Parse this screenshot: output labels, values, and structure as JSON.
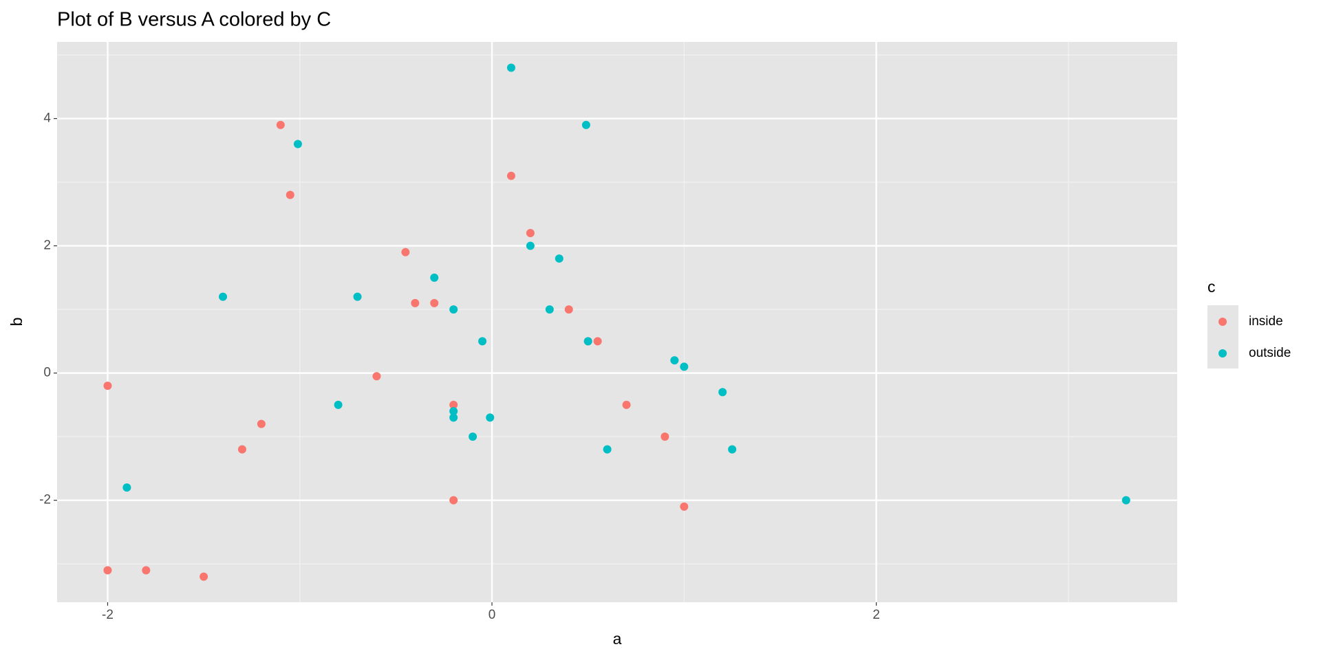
{
  "chart_data": {
    "type": "scatter",
    "title": "Plot of B versus A colored by C",
    "xlabel": "a",
    "ylabel": "b",
    "legend_title": "c",
    "legend": "right",
    "grid": true,
    "xlim": [
      -2.263,
      3.566
    ],
    "ylim": [
      -3.603,
      5.205
    ],
    "xticks": [
      -2,
      0,
      2
    ],
    "yticks": [
      -2,
      0,
      2,
      4
    ],
    "series": [
      {
        "name": "inside",
        "color": "#f8766d",
        "x": [
          -1.1,
          -1.05,
          -2.0,
          -2.0,
          -1.8,
          -1.5,
          -1.3,
          -1.2,
          -0.6,
          -0.45,
          -0.4,
          -0.3,
          -0.2,
          -0.2,
          0.1,
          0.2,
          0.4,
          0.5,
          0.55,
          0.7,
          0.9,
          1.0
        ],
        "values": [
          3.9,
          2.8,
          -0.2,
          -3.1,
          -3.1,
          -3.2,
          -1.2,
          -0.8,
          -0.05,
          1.9,
          1.1,
          1.1,
          -0.5,
          -2.0,
          3.1,
          2.2,
          1.0,
          0.5,
          0.5,
          -0.5,
          -1.0,
          -2.1
        ]
      },
      {
        "name": "outside",
        "color": "#00bfc4",
        "x": [
          0.1,
          0.49,
          -1.01,
          -1.4,
          -0.7,
          -1.9,
          -0.8,
          -0.3,
          -0.2,
          -0.05,
          -0.2,
          -0.2,
          -0.1,
          -0.01,
          0.2,
          0.35,
          0.3,
          0.5,
          0.6,
          0.95,
          1.0,
          1.2,
          1.25,
          3.3
        ],
        "values": [
          4.8,
          3.9,
          3.6,
          1.2,
          1.2,
          -1.8,
          -0.5,
          1.5,
          1.0,
          0.5,
          -0.6,
          -0.7,
          -1.0,
          -0.7,
          2.0,
          1.8,
          1.0,
          0.5,
          -1.2,
          0.2,
          0.1,
          -0.3,
          -1.2,
          -2.0
        ]
      }
    ]
  }
}
